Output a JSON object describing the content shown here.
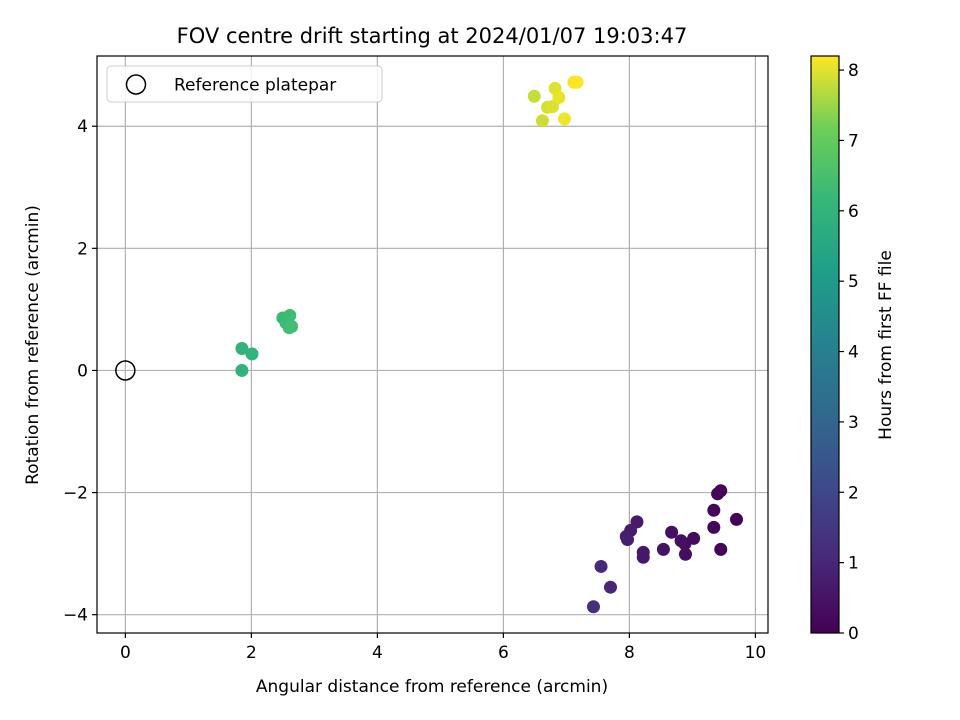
{
  "chart_data": {
    "type": "scatter",
    "title": "FOV centre drift starting at 2024/01/07 19:03:47",
    "xlabel": "Angular distance from reference (arcmin)",
    "ylabel": "Rotation from reference (arcmin)",
    "xlim": [
      -0.45,
      10.2
    ],
    "ylim": [
      -4.3,
      5.15
    ],
    "xticks": [
      0,
      2,
      4,
      6,
      8,
      10
    ],
    "yticks": [
      -4,
      -2,
      0,
      2,
      4
    ],
    "grid": true,
    "legend": {
      "position": "top-left",
      "entries": [
        "Reference platepar"
      ]
    },
    "reference_point": {
      "x": 0,
      "y": 0,
      "label": "Reference platepar"
    },
    "colorbar": {
      "label": "Hours from first FF file",
      "colormap": "viridis",
      "range": [
        0,
        8.2
      ],
      "ticks": [
        0,
        1,
        2,
        3,
        4,
        5,
        6,
        7,
        8
      ]
    },
    "points": [
      {
        "x": 9.45,
        "y": -1.97,
        "t": 0.05
      },
      {
        "x": 9.4,
        "y": -2.02,
        "t": 0.1
      },
      {
        "x": 9.7,
        "y": -2.44,
        "t": 0.05
      },
      {
        "x": 9.34,
        "y": -2.29,
        "t": 0.15
      },
      {
        "x": 9.34,
        "y": -2.57,
        "t": 0.2
      },
      {
        "x": 9.45,
        "y": -2.93,
        "t": 0.1
      },
      {
        "x": 9.02,
        "y": -2.75,
        "t": 0.25
      },
      {
        "x": 8.88,
        "y": -2.84,
        "t": 0.3
      },
      {
        "x": 8.82,
        "y": -2.79,
        "t": 0.35
      },
      {
        "x": 8.89,
        "y": -3.01,
        "t": 0.3
      },
      {
        "x": 8.67,
        "y": -2.65,
        "t": 0.4
      },
      {
        "x": 8.54,
        "y": -2.93,
        "t": 0.45
      },
      {
        "x": 8.22,
        "y": -2.98,
        "t": 0.55
      },
      {
        "x": 8.22,
        "y": -3.06,
        "t": 0.6
      },
      {
        "x": 8.12,
        "y": -2.48,
        "t": 0.65
      },
      {
        "x": 8.02,
        "y": -2.62,
        "t": 0.7
      },
      {
        "x": 7.95,
        "y": -2.72,
        "t": 0.75
      },
      {
        "x": 7.97,
        "y": -2.77,
        "t": 0.8
      },
      {
        "x": 7.7,
        "y": -3.55,
        "t": 1.0
      },
      {
        "x": 7.55,
        "y": -3.21,
        "t": 1.1
      },
      {
        "x": 7.43,
        "y": -3.87,
        "t": 1.2
      },
      {
        "x": 1.85,
        "y": 0.0,
        "t": 5.9
      },
      {
        "x": 1.85,
        "y": 0.36,
        "t": 5.95
      },
      {
        "x": 2.01,
        "y": 0.27,
        "t": 6.0
      },
      {
        "x": 2.5,
        "y": 0.86,
        "t": 6.2
      },
      {
        "x": 2.55,
        "y": 0.78,
        "t": 6.25
      },
      {
        "x": 2.61,
        "y": 0.9,
        "t": 6.3
      },
      {
        "x": 2.6,
        "y": 0.7,
        "t": 6.35
      },
      {
        "x": 2.64,
        "y": 0.72,
        "t": 6.4
      },
      {
        "x": 6.49,
        "y": 4.49,
        "t": 7.8
      },
      {
        "x": 6.62,
        "y": 4.09,
        "t": 7.85
      },
      {
        "x": 6.7,
        "y": 4.31,
        "t": 7.9
      },
      {
        "x": 6.78,
        "y": 4.32,
        "t": 7.95
      },
      {
        "x": 6.82,
        "y": 4.62,
        "t": 8.0
      },
      {
        "x": 6.88,
        "y": 4.47,
        "t": 8.05
      },
      {
        "x": 6.97,
        "y": 4.12,
        "t": 8.1
      },
      {
        "x": 7.12,
        "y": 4.72,
        "t": 8.15
      },
      {
        "x": 7.17,
        "y": 4.72,
        "t": 8.2
      }
    ]
  }
}
